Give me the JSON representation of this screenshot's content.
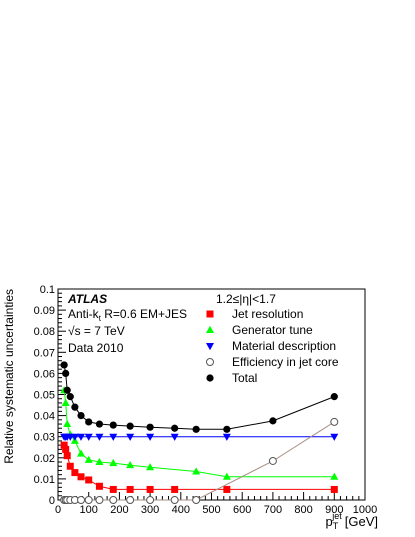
{
  "chart_data": {
    "type": "line",
    "xlabel": "p",
    "xlabel_sub": "T",
    "xlabel_sup": "jet",
    "xlabel_unit": "[GeV]",
    "ylabel": "Relative systematic uncertainties",
    "xlim": [
      0,
      1000
    ],
    "ylim": [
      0,
      0.1
    ],
    "x_ticks": [
      0,
      100,
      200,
      300,
      400,
      500,
      600,
      700,
      800,
      900,
      1000
    ],
    "y_ticks": [
      0,
      0.01,
      0.02,
      0.03,
      0.04,
      0.05,
      0.06,
      0.07,
      0.08,
      0.09,
      0.1
    ],
    "grid": false,
    "legend_position": "top-right",
    "annotations": {
      "experiment": "ATLAS",
      "algo_prefix": "Anti-k",
      "algo_sub": "t",
      "algo_rest": " R=0.6 EM+JES",
      "sqrt_label": "√s = 7 TeV",
      "data_label": "Data 2010",
      "eta_range": "1.2≤|η|<1.7"
    },
    "series": [
      {
        "name": "Jet resolution",
        "marker": "square",
        "color": "#ff0000",
        "x": [
          20,
          25,
          30,
          40,
          55,
          75,
          100,
          135,
          180,
          235,
          300,
          380,
          550,
          900
        ],
        "y": [
          0.026,
          0.024,
          0.021,
          0.016,
          0.013,
          0.011,
          0.0095,
          0.0065,
          0.005,
          0.005,
          0.005,
          0.005,
          0.005,
          0.005
        ]
      },
      {
        "name": "Generator tune",
        "marker": "triangle-up",
        "color": "#00ff00",
        "x": [
          20,
          25,
          30,
          40,
          55,
          75,
          100,
          135,
          180,
          235,
          300,
          450,
          550,
          900
        ],
        "y": [
          0.052,
          0.046,
          0.036,
          0.031,
          0.028,
          0.022,
          0.019,
          0.018,
          0.0175,
          0.0165,
          0.0155,
          0.0135,
          0.011,
          0.011
        ]
      },
      {
        "name": "Material description",
        "marker": "triangle-down",
        "color": "#0000ff",
        "x": [
          20,
          25,
          30,
          40,
          55,
          75,
          100,
          135,
          180,
          235,
          300,
          380,
          550,
          900
        ],
        "y": [
          0.03,
          0.03,
          0.03,
          0.03,
          0.03,
          0.03,
          0.03,
          0.03,
          0.03,
          0.03,
          0.03,
          0.03,
          0.03,
          0.03
        ]
      },
      {
        "name": "Efficiency in jet core",
        "marker": "circle-open",
        "color": "#a68c80",
        "x": [
          20,
          25,
          30,
          40,
          55,
          75,
          100,
          135,
          180,
          235,
          300,
          380,
          450,
          700,
          900
        ],
        "y": [
          0,
          0,
          0,
          0,
          0,
          0,
          0,
          0,
          0,
          0,
          0,
          0,
          0,
          0.0185,
          0.037
        ]
      },
      {
        "name": "Total",
        "marker": "circle",
        "color": "#000000",
        "x": [
          20,
          25,
          30,
          40,
          55,
          75,
          100,
          135,
          180,
          235,
          300,
          380,
          450,
          550,
          700,
          900
        ],
        "y": [
          0.064,
          0.06,
          0.052,
          0.049,
          0.044,
          0.04,
          0.037,
          0.036,
          0.0355,
          0.035,
          0.0345,
          0.034,
          0.0335,
          0.0335,
          0.0375,
          0.049
        ]
      }
    ]
  }
}
